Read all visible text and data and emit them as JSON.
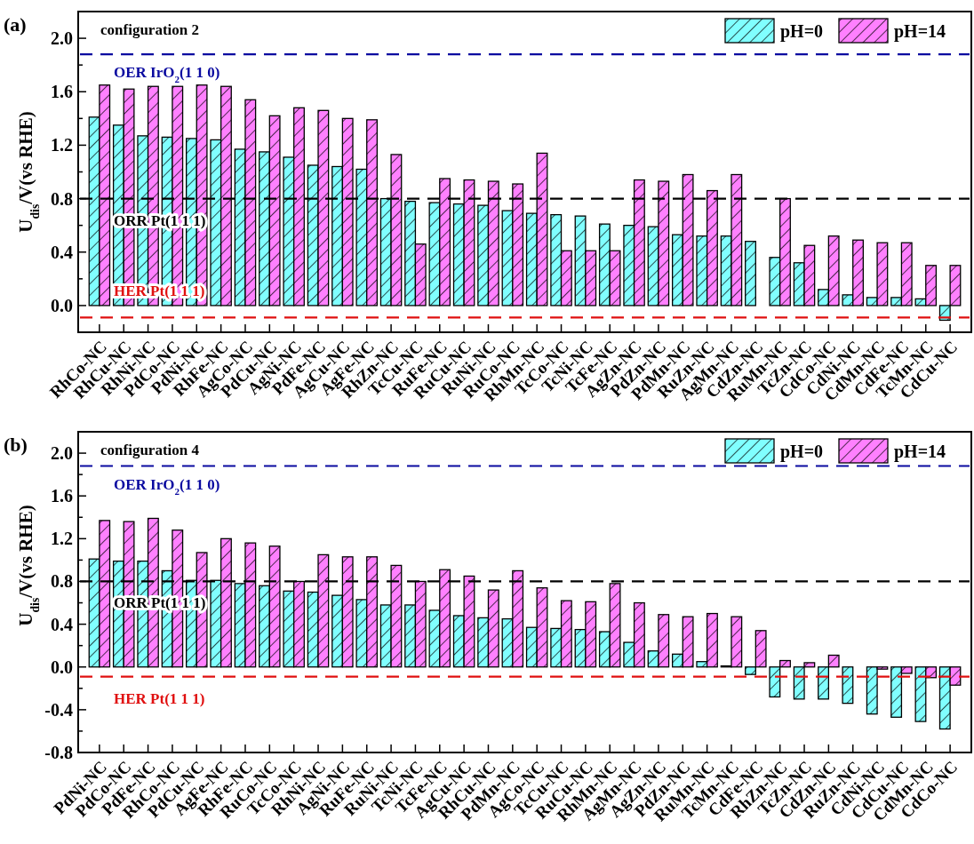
{
  "chart_data": [
    {
      "type": "bar",
      "title": "configuration 2",
      "annotations": [
        "(a)"
      ],
      "ylabel": "U$_{dis}$/V(vs RHE)",
      "legend": "top right",
      "grid": false,
      "categories": [
        "RhCo-NC",
        "RhCu-NC",
        "RhNi-NC",
        "PdCo-NC",
        "PdNi-NC",
        "RhFe-NC",
        "AgCo-NC",
        "PdCu-NC",
        "AgNi-NC",
        "PdFe-NC",
        "AgCu-NC",
        "AgFe-NC",
        "RhZn-NC",
        "TcCu-NC",
        "RuFe-NC",
        "RuCu-NC",
        "RuNi-NC",
        "RuCo-NC",
        "RhMn-NC",
        "TcCo-NC",
        "TcNi-NC",
        "TcFe-NC",
        "AgZn-NC",
        "PdZn-NC",
        "PdMn-NC",
        "RuZn-NC",
        "AgMn-NC",
        "CdZn-NC",
        "RuMn-NC",
        "TcZn-NC",
        "CdCo-NC",
        "CdNi-NC",
        "CdMn-NC",
        "CdFe-NC",
        "TcMn-NC",
        "CdCu-NC"
      ],
      "series": [
        {
          "name": "pH=0",
          "color": "#80ffff",
          "values": [
            1.41,
            1.35,
            1.27,
            1.26,
            1.25,
            1.24,
            1.17,
            1.15,
            1.11,
            1.05,
            1.04,
            1.02,
            0.8,
            0.78,
            0.77,
            0.76,
            0.75,
            0.71,
            0.69,
            0.68,
            0.67,
            0.61,
            0.6,
            0.59,
            0.53,
            0.52,
            0.52,
            0.48,
            0.36,
            0.32,
            0.12,
            0.08,
            0.06,
            0.06,
            0.05,
            -0.11
          ]
        },
        {
          "name": "pH=14",
          "color": "#ff80ff",
          "values": [
            1.65,
            1.62,
            1.64,
            1.64,
            1.65,
            1.64,
            1.54,
            1.42,
            1.48,
            1.46,
            1.4,
            1.39,
            1.13,
            0.46,
            0.95,
            0.94,
            0.93,
            0.91,
            1.14,
            0.41,
            0.41,
            0.41,
            0.94,
            0.93,
            0.98,
            0.86,
            0.98,
            null,
            0.8,
            0.45,
            0.52,
            0.49,
            0.47,
            0.47,
            0.3,
            0.3
          ]
        }
      ],
      "ylim": [
        -0.2,
        2.2
      ],
      "yticks": [
        {
          "value": -0.2,
          "label": null
        },
        {
          "value": 0,
          "label": "0.0"
        },
        {
          "value": 0.2,
          "label": null
        },
        0.4,
        {
          "value": 0.6,
          "label": null
        },
        0.8,
        {
          "value": 1.0,
          "label": null
        },
        1.2,
        {
          "value": 1.4,
          "label": null
        },
        1.6,
        {
          "value": 1.8,
          "label": null
        },
        {
          "value": 2,
          "label": "2.0"
        },
        {
          "value": 2.2,
          "label": null
        }
      ],
      "ref_lines": [
        {
          "axis": "y",
          "value": 1.88,
          "label": "OER IrO$_{2}$(1 1 0)",
          "color": "#0a0aa0",
          "line_style": "dashed"
        },
        {
          "axis": "y",
          "value": 0.8,
          "label": "ORR Pt(1 1 1)",
          "color": "#000000",
          "line_style": "dashed"
        },
        {
          "axis": "y",
          "value": -0.09,
          "label": "HER Pt(1 1 1)",
          "color": "#e01010",
          "line_style": "dashed"
        }
      ]
    },
    {
      "type": "bar",
      "title": "configuration 4",
      "annotations": [
        "(b)"
      ],
      "ylabel": "U$_{dis}$/V(vs RHE)",
      "legend": "top right",
      "grid": false,
      "categories": [
        "PdNi-NC",
        "PdCo-NC",
        "PdFe-NC",
        "RhCo-NC",
        "PdCu-NC",
        "AgFe-NC",
        "RhFe-NC",
        "RuCo-NC",
        "TcCo-NC",
        "RhNi-NC",
        "AgNi-NC",
        "RuFe-NC",
        "RuNi-NC",
        "TcNi-NC",
        "TcFe-NC",
        "AgCu-NC",
        "RhCu-NC",
        "PdMn-NC",
        "AgCo-NC",
        "TcCu-NC",
        "RuCu-NC",
        "RhMn-NC",
        "AgMn-NC",
        "AgZn-NC",
        "PdZn-NC",
        "RuMn-NC",
        "TcMn-NC",
        "CdFe-NC",
        "RhZn-NC",
        "TcZn-NC",
        "CdZn-NC",
        "RuZn-NC",
        "CdNi-NC",
        "CdCu-NC",
        "CdMn-NC",
        "CdCo-NC"
      ],
      "series": [
        {
          "name": "pH=0",
          "color": "#80ffff",
          "values": [
            1.01,
            0.99,
            0.99,
            0.9,
            0.81,
            0.81,
            0.78,
            0.76,
            0.71,
            0.7,
            0.67,
            0.63,
            0.58,
            0.58,
            0.53,
            0.48,
            0.46,
            0.45,
            0.37,
            0.36,
            0.35,
            0.33,
            0.23,
            0.15,
            0.12,
            0.05,
            0.01,
            -0.07,
            -0.28,
            -0.3,
            -0.3,
            -0.34,
            -0.44,
            -0.47,
            -0.51,
            -0.58
          ]
        },
        {
          "name": "pH=14",
          "color": "#ff80ff",
          "values": [
            1.37,
            1.36,
            1.39,
            1.28,
            1.07,
            1.2,
            1.16,
            1.13,
            0.8,
            1.05,
            1.03,
            1.03,
            0.95,
            0.8,
            0.91,
            0.85,
            0.72,
            0.9,
            0.74,
            0.62,
            0.61,
            0.78,
            0.6,
            0.49,
            0.47,
            0.5,
            0.47,
            0.34,
            0.06,
            0.04,
            0.11,
            null,
            -0.02,
            -0.06,
            -0.1,
            -0.17
          ]
        }
      ],
      "ylim": [
        -0.8,
        2.2
      ],
      "yticks": [
        -0.8,
        {
          "value": -0.6,
          "label": null
        },
        -0.4,
        {
          "value": -0.2,
          "label": null
        },
        {
          "value": 0,
          "label": "0.0"
        },
        {
          "value": 0.2,
          "label": null
        },
        0.4,
        {
          "value": 0.6,
          "label": null
        },
        0.8,
        {
          "value": 1.0,
          "label": null
        },
        1.2,
        {
          "value": 1.4,
          "label": null
        },
        1.6,
        {
          "value": 1.8,
          "label": null
        },
        {
          "value": 2,
          "label": "2.0"
        },
        {
          "value": 2.2,
          "label": null
        }
      ],
      "ref_lines": [
        {
          "axis": "y",
          "value": 1.88,
          "label": "OER IrO$_{2}$(1 1 0)",
          "color": "#0a0aa0",
          "line_style": "dashed"
        },
        {
          "axis": "y",
          "value": 0.8,
          "label": "ORR Pt(1 1 1)",
          "color": "#000000",
          "line_style": "dashed"
        },
        {
          "axis": "y",
          "value": -0.09,
          "label": "HER Pt(1 1 1)",
          "color": "#e01010",
          "line_style": "dashed"
        }
      ]
    }
  ]
}
